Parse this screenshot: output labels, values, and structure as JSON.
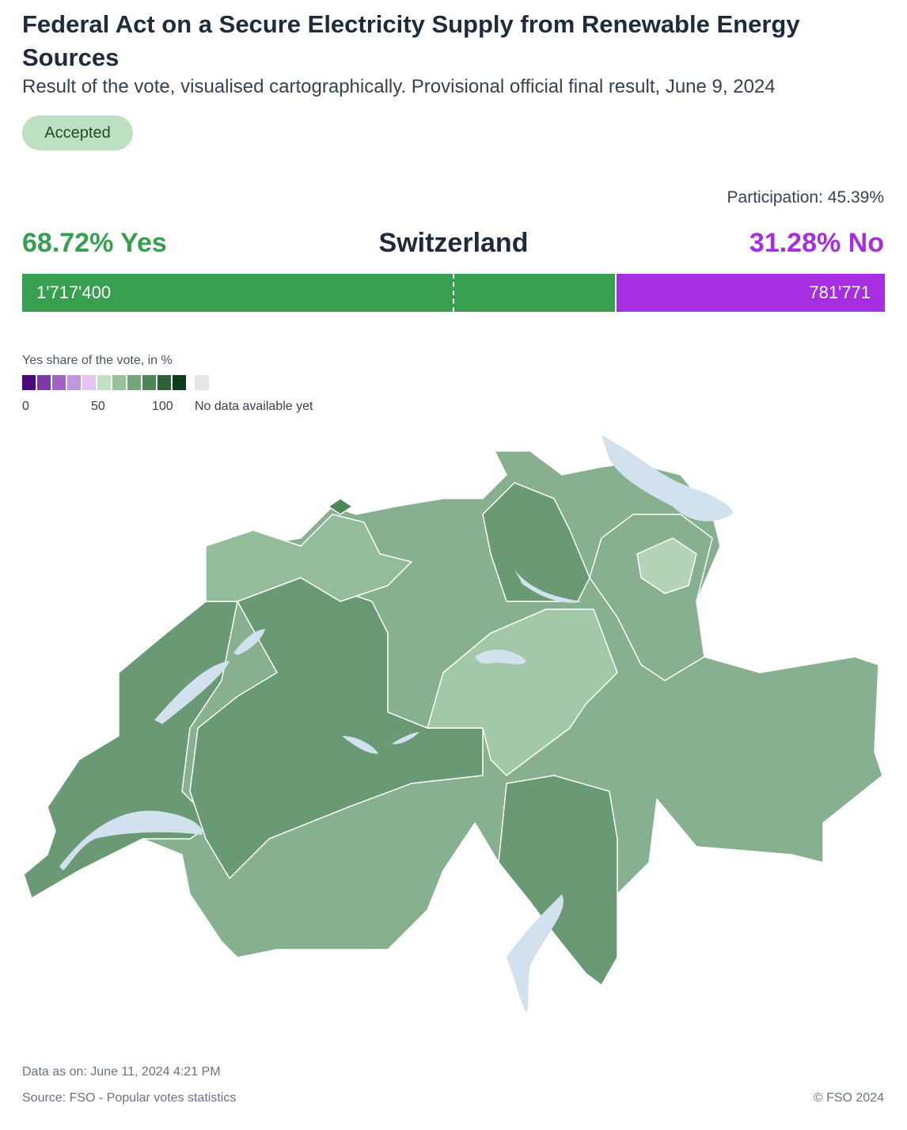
{
  "header": {
    "title": "Federal Act on a Secure Electricity Supply from Renewable Energy Sources",
    "subtitle": "Result of the vote, visualised cartographically. Provisional official final result, June 9, 2024",
    "status": "Accepted"
  },
  "result": {
    "participation": "Participation: 45.39%",
    "yes_headline": "68.72% Yes",
    "region": "Switzerland",
    "no_headline": "31.28% No",
    "bar": [
      {
        "value": 1717400,
        "label": "1'717'400",
        "color": "#399f50"
      },
      {
        "value": 781771,
        "label": "781'771",
        "color": "#a62ee0"
      }
    ]
  },
  "legend": {
    "title": "Yes share of the vote, in %",
    "colors": [
      "#4b0a7a",
      "#7c3aa6",
      "#a064c2",
      "#c196dd",
      "#e3c4f2",
      "#c2e0c6",
      "#97c29c",
      "#74a67b",
      "#4f8658",
      "#2c6438",
      "#0d3d1a"
    ],
    "ticks": [
      "0",
      "50",
      "100"
    ],
    "no_data": "No data available yet"
  },
  "footer": {
    "updated": "Data as on: June 11, 2024 4:21 PM",
    "source": "Source: FSO - Popular votes statistics",
    "copyright": "© FSO 2024"
  }
}
